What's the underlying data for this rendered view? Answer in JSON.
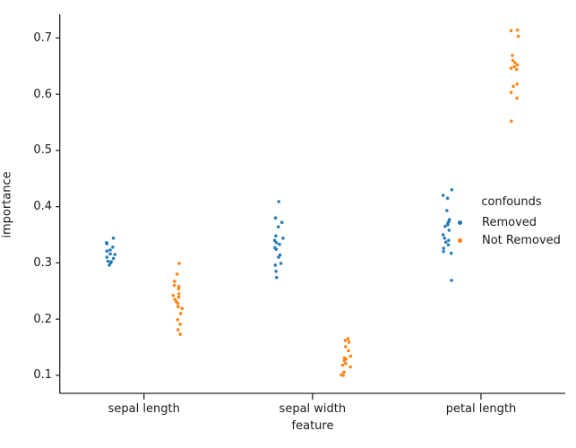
{
  "chart_data": {
    "type": "scatter",
    "variant": "stripplot-dodged",
    "title": "",
    "xlabel": "feature",
    "ylabel": "importance",
    "categories": [
      "sepal length",
      "sepal width",
      "petal length"
    ],
    "y_ticks": [
      0.1,
      0.2,
      0.3,
      0.4,
      0.5,
      0.6,
      0.7
    ],
    "ylim": [
      0.068,
      0.742
    ],
    "grid": false,
    "background_color": "#ffffff",
    "text_color": "#1a1a1a",
    "spine_color": "#262626",
    "legend": {
      "title": "confounds",
      "position": "right-outside",
      "entries": [
        {
          "label": "Removed",
          "color": "#1f77b4"
        },
        {
          "label": "Not Removed",
          "color": "#ff7f0e"
        }
      ]
    },
    "series": [
      {
        "name": "Removed",
        "color": "#1f77b4",
        "dodge": -0.2,
        "values": [
          [
            0.344,
            0.336,
            0.334,
            0.328,
            0.323,
            0.321,
            0.316,
            0.315,
            0.31,
            0.308,
            0.303,
            0.302,
            0.3,
            0.296
          ],
          [
            0.409,
            0.38,
            0.372,
            0.364,
            0.348,
            0.344,
            0.34,
            0.336,
            0.333,
            0.327,
            0.324,
            0.314,
            0.31,
            0.299,
            0.296,
            0.285,
            0.274
          ],
          [
            0.43,
            0.42,
            0.415,
            0.393,
            0.377,
            0.374,
            0.371,
            0.368,
            0.365,
            0.358,
            0.35,
            0.344,
            0.34,
            0.337,
            0.332,
            0.326,
            0.32,
            0.317,
            0.269
          ]
        ]
      },
      {
        "name": "Not Removed",
        "color": "#ff7f0e",
        "dodge": 0.2,
        "values": [
          [
            0.299,
            0.28,
            0.267,
            0.26,
            0.258,
            0.254,
            0.245,
            0.242,
            0.239,
            0.235,
            0.231,
            0.228,
            0.222,
            0.219,
            0.21,
            0.199,
            0.191,
            0.181,
            0.173
          ],
          [
            0.165,
            0.162,
            0.159,
            0.151,
            0.144,
            0.134,
            0.131,
            0.129,
            0.126,
            0.121,
            0.118,
            0.115,
            0.106,
            0.101,
            0.1
          ],
          [
            0.714,
            0.713,
            0.703,
            0.669,
            0.66,
            0.656,
            0.652,
            0.649,
            0.646,
            0.644,
            0.618,
            0.614,
            0.603,
            0.593,
            0.552
          ]
        ]
      }
    ]
  }
}
